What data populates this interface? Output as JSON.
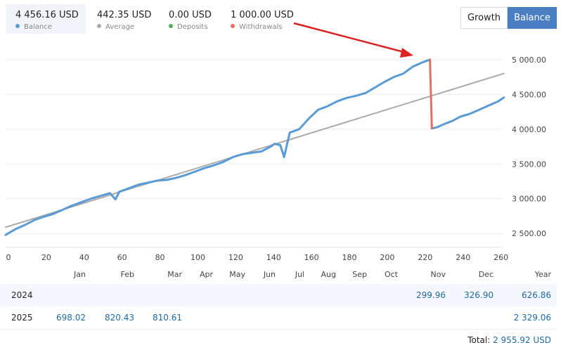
{
  "stats": [
    {
      "value": "4 456.16 USD",
      "label": "Balance",
      "color": "#5b9bd5",
      "active": true
    },
    {
      "value": "442.35 USD",
      "label": "Average",
      "color": "#aaaaaa",
      "active": false
    },
    {
      "value": "0.00 USD",
      "label": "Deposits",
      "color": "#4caf50",
      "active": false
    },
    {
      "value": "1 000.00 USD",
      "label": "Withdrawals",
      "color": "#e07060",
      "active": false
    }
  ],
  "toggle": {
    "growth": "Growth",
    "balance": "Balance",
    "selected": "Balance"
  },
  "chart_data": {
    "type": "line",
    "xlim": [
      0,
      262
    ],
    "ylim": [
      2300,
      5150
    ],
    "xticks": [
      "0",
      "20",
      "40",
      "60",
      "80",
      "100",
      "120",
      "140",
      "160",
      "180",
      "200",
      "220",
      "240",
      "260"
    ],
    "yticks": [
      "2 500.00",
      "3 000.00",
      "3 500.00",
      "4 000.00",
      "4 500.00",
      "5 000.00"
    ],
    "ytick_values": [
      2500,
      3000,
      3500,
      4000,
      4500,
      5000
    ],
    "grid": true,
    "series": [
      {
        "name": "Balance",
        "color": "#5b9bd5",
        "x": [
          0,
          5,
          10,
          15,
          20,
          25,
          30,
          35,
          40,
          45,
          50,
          55,
          58,
          60,
          65,
          70,
          75,
          80,
          85,
          90,
          95,
          100,
          105,
          110,
          115,
          120,
          125,
          130,
          135,
          140,
          142,
          145,
          147,
          150,
          155,
          160,
          165,
          170,
          175,
          180,
          185,
          190,
          195,
          200,
          205,
          210,
          215,
          220,
          224
        ],
        "y": [
          2480,
          2560,
          2620,
          2690,
          2740,
          2780,
          2840,
          2900,
          2950,
          3000,
          3040,
          3080,
          2990,
          3100,
          3150,
          3200,
          3230,
          3260,
          3270,
          3300,
          3340,
          3390,
          3440,
          3480,
          3530,
          3600,
          3640,
          3660,
          3680,
          3750,
          3790,
          3770,
          3600,
          3950,
          4000,
          4150,
          4280,
          4330,
          4400,
          4450,
          4480,
          4520,
          4600,
          4680,
          4750,
          4800,
          4900,
          4960,
          5000
        ]
      },
      {
        "name": "Withdrawals",
        "color": "#e07060",
        "x": [
          224,
          225
        ],
        "y": [
          5000,
          4010
        ]
      },
      {
        "name": "Balance",
        "color": "#5b9bd5",
        "x": [
          225,
          228,
          232,
          236,
          240,
          245,
          250,
          255,
          260,
          263
        ],
        "y": [
          4010,
          4030,
          4080,
          4120,
          4180,
          4220,
          4280,
          4340,
          4400,
          4456
        ]
      },
      {
        "name": "Average",
        "color": "#aaaaaa",
        "x": [
          0,
          263
        ],
        "y": [
          2590,
          4800
        ]
      }
    ]
  },
  "table": {
    "months": [
      "Jan",
      "Feb",
      "Mar",
      "Apr",
      "May",
      "Jun",
      "Jul",
      "Aug",
      "Sep",
      "Oct",
      "Nov",
      "Dec",
      "Year"
    ],
    "rows": [
      {
        "year": "2024",
        "cells": [
          "",
          "",
          "",
          "",
          "",
          "",
          "",
          "",
          "",
          "",
          "299.96",
          "326.90",
          "626.86"
        ]
      },
      {
        "year": "2025",
        "cells": [
          "698.02",
          "820.43",
          "810.61",
          "",
          "",
          "",
          "",
          "",
          "",
          "",
          "",
          "",
          "2 329.06"
        ]
      }
    ],
    "total_label": "Total:",
    "total_value": "2 955.92 USD"
  }
}
